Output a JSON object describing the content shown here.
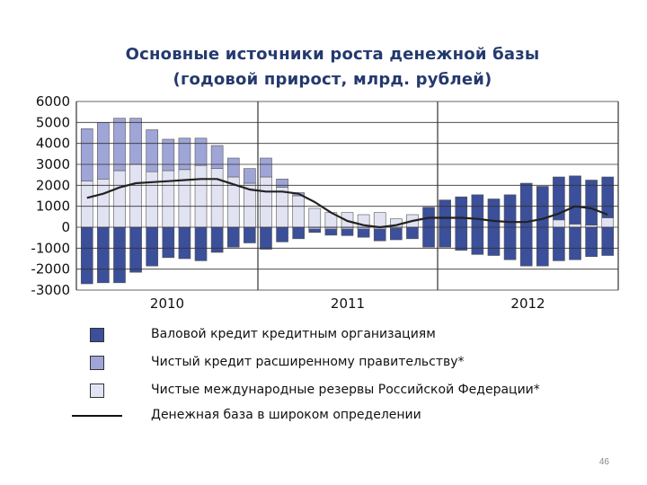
{
  "title_line1": "Основные источники роста денежной базы",
  "title_line2": "(годовой прирост, млрд. рублей)",
  "page_number": "46",
  "colors": {
    "gross_credit": "#3b4f9a",
    "net_credit_gov": "#9fa5d6",
    "net_reserves": "#e2e3f2",
    "monetary_base": "#222222",
    "grid": "#333333"
  },
  "chart_data": {
    "type": "bar",
    "stacked": true,
    "ylim": [
      -3000,
      6000
    ],
    "yticks": [
      "6000",
      "5000",
      "4000",
      "3000",
      "2000",
      "1000",
      "0",
      "-1000",
      "-2000",
      "-3000"
    ],
    "xtick_labels": [
      "2010",
      "2011",
      "2012"
    ],
    "grid": true,
    "series": [
      {
        "name": "Валовой кредит кредитным организациям",
        "color": "#3b4f9a",
        "values": [
          -2700,
          -2650,
          -2650,
          -2150,
          -1850,
          -1450,
          -1500,
          -1600,
          -1200,
          -950,
          -750,
          -1050,
          -700,
          -550,
          -250,
          -380,
          -400,
          -480,
          -650,
          -600,
          -550,
          -950,
          -950,
          -1100,
          -1300,
          -1350,
          -1550,
          -1850,
          -1850,
          -1600,
          -1550,
          -1400,
          -1350
        ]
      },
      {
        "name": "Чистый кредит расширенному  правительству*",
        "color": "#9fa5d6",
        "values": [
          2500,
          2700,
          2500,
          2200,
          2000,
          1500,
          1500,
          1300,
          1100,
          900,
          700,
          900,
          400,
          150,
          -100,
          -100,
          -100,
          -100,
          -100,
          -50,
          0,
          0,
          0,
          0,
          0,
          0,
          0,
          0,
          0,
          0,
          0,
          0,
          0
        ]
      },
      {
        "name": "Чистые международные резервы Российской Федерации*",
        "color": "#e2e3f2",
        "values": [
          2200,
          2300,
          2700,
          3000,
          2650,
          2700,
          2750,
          2950,
          2800,
          2400,
          2100,
          2400,
          1900,
          1500,
          900,
          700,
          700,
          600,
          700,
          400,
          600,
          0,
          0,
          0,
          0,
          0,
          0,
          0,
          0,
          0,
          0,
          0,
          0
        ]
      },
      {
        "name": "Денежная база в широком определении",
        "type": "line",
        "color": "#222222",
        "values": [
          1400,
          1600,
          1900,
          2100,
          2150,
          2200,
          2250,
          2300,
          2300,
          2050,
          1800,
          1700,
          1700,
          1600,
          1200,
          700,
          300,
          100,
          0,
          100,
          300,
          450,
          450,
          450,
          400,
          300,
          250,
          250,
          400,
          650,
          1000,
          900,
          600
        ]
      }
    ],
    "gross_credit_positive": [
      0,
      0,
      0,
      0,
      0,
      0,
      0,
      0,
      0,
      0,
      0,
      0,
      0,
      0,
      0,
      0,
      0,
      0,
      0,
      0,
      0,
      950,
      1300,
      1450,
      1550,
      1350,
      1550,
      2100,
      1950,
      2400,
      2450,
      2250,
      2400
    ],
    "net_credit_gov_positive_late": [
      0,
      0,
      0,
      0,
      0,
      0,
      0,
      0,
      0,
      0,
      0,
      0,
      0,
      0,
      0,
      0,
      0,
      0,
      0,
      0,
      0,
      0,
      0,
      0,
      0,
      0,
      0,
      0,
      0,
      350,
      150,
      100,
      450
    ]
  },
  "legend": [
    {
      "label": "Валовой кредит кредитным организациям",
      "icon": "dark-blue-square"
    },
    {
      "label": "Чистый кредит расширенному  правительству*",
      "icon": "medium-blue-square"
    },
    {
      "label": "Чистые международные резервы Российской Федерации*",
      "icon": "light-square"
    },
    {
      "label": "Денежная база в широком определении",
      "icon": "line"
    }
  ]
}
